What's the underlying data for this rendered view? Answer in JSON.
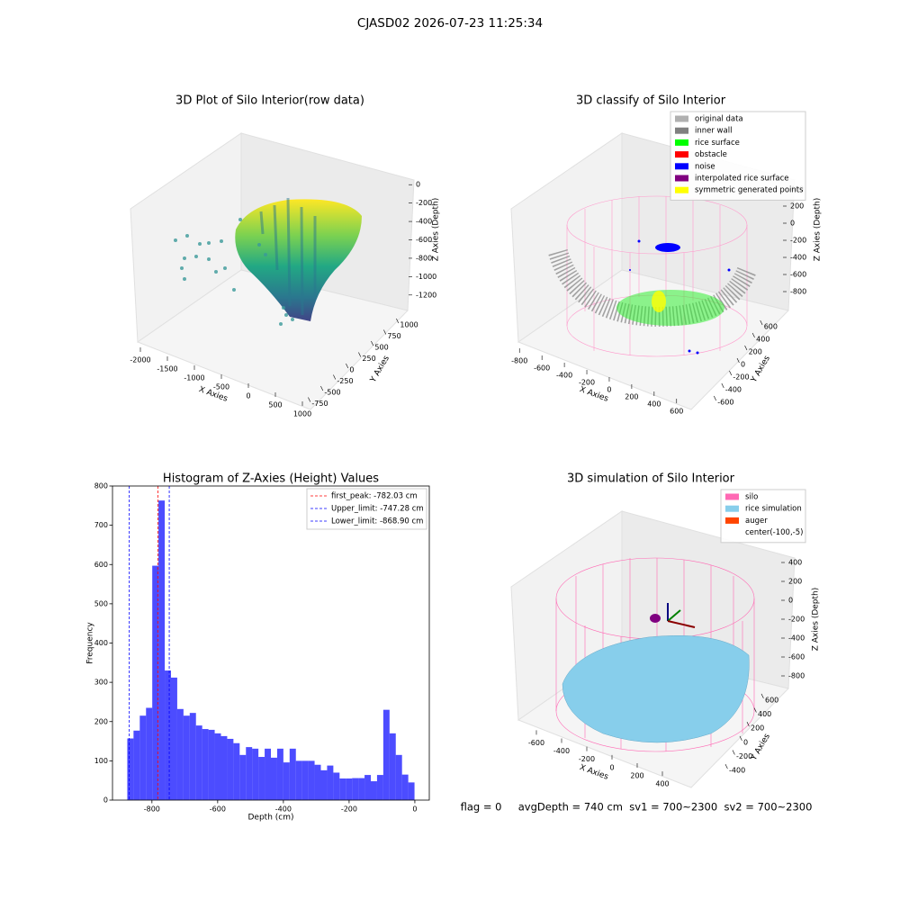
{
  "title": "CJASD02 2026-07-23 11:25:34",
  "footer": "flag = 0     avgDepth = 740 cm  sv1 = 700~2300  sv2 = 700~2300",
  "chart_data": [
    {
      "type": "scatter3d",
      "title": "3D Plot of Silo Interior(row data)",
      "xlabel": "X Axies",
      "ylabel": "Y Axies",
      "zlabel": "Z Axies (Depth)",
      "xlim": [
        -2200,
        1200
      ],
      "xticks": [
        -2000,
        -1500,
        -1000,
        -500,
        0,
        500,
        1000
      ],
      "ylim": [
        -900,
        1100
      ],
      "yticks": [
        -750,
        -500,
        -250,
        0,
        250,
        500,
        750,
        1000
      ],
      "zlim": [
        -1300,
        100
      ],
      "zticks": [
        0,
        -200,
        -400,
        -600,
        -800,
        -1000,
        -1200
      ]
    },
    {
      "type": "scatter3d",
      "title": "3D classify of Silo Interior",
      "xlabel": "X Axies",
      "ylabel": "Y Axies",
      "zlabel": "Z Axies (Depth)",
      "xlim": [
        -850,
        650
      ],
      "xticks": [
        -800,
        -600,
        -400,
        -200,
        0,
        200,
        400,
        600
      ],
      "ylim": [
        -700,
        700
      ],
      "yticks": [
        -600,
        -400,
        -200,
        0,
        200,
        400,
        600
      ],
      "zlim": [
        -900,
        500
      ],
      "zticks": [
        400,
        200,
        0,
        -200,
        -400,
        -600,
        -800
      ],
      "legend": [
        {
          "name": "original data",
          "color": "#b0b0b0"
        },
        {
          "name": "inner wall",
          "color": "#808080"
        },
        {
          "name": "rice surface",
          "color": "#00ff00"
        },
        {
          "name": "obstacle",
          "color": "#ff0000"
        },
        {
          "name": "noise",
          "color": "#0000ff"
        },
        {
          "name": "interpolated rice surface",
          "color": "#800080"
        },
        {
          "name": "symmetric generated points",
          "color": "#ffff00"
        }
      ]
    },
    {
      "type": "histogram",
      "title": "Histogram of Z-Axies (Height) Values",
      "xlabel": "Depth (cm)",
      "ylabel": "Frequency",
      "color": "#0000ff",
      "bins": [
        -875,
        -856,
        -837,
        -818,
        -799,
        -780,
        -761,
        -742,
        -723,
        -704,
        -685,
        -666,
        -647,
        -628,
        -609,
        -590,
        -571,
        -552,
        -533,
        -514,
        -495,
        -476,
        -457,
        -438,
        -419,
        -400,
        -381,
        -362,
        -343,
        -324,
        -305,
        -286,
        -267,
        -248,
        -229,
        -210,
        -191,
        -172,
        -153,
        -134,
        -115,
        -96,
        -77,
        -58,
        -39,
        -20,
        -1
      ],
      "values": [
        157,
        177,
        215,
        235,
        597,
        763,
        330,
        312,
        232,
        215,
        222,
        190,
        181,
        179,
        170,
        163,
        156,
        145,
        115,
        135,
        131,
        110,
        131,
        108,
        131,
        96,
        131,
        100,
        100,
        100,
        90,
        76,
        88,
        70,
        55,
        55,
        56,
        56,
        64,
        48,
        64,
        230,
        170,
        115,
        65,
        45
      ],
      "xlim": [
        -920,
        44
      ],
      "xticks": [
        -800,
        -600,
        -400,
        -200,
        0
      ],
      "ylim": [
        0,
        800
      ],
      "yticks": [
        0,
        100,
        200,
        300,
        400,
        500,
        600,
        700,
        800
      ],
      "vlines": [
        {
          "label": "first_peak: -782.03 cm",
          "value": -782.03,
          "color": "#ff0000"
        },
        {
          "label": "Upper_limit: -747.28 cm",
          "value": -747.28,
          "color": "#0000ff"
        },
        {
          "label": "Lower_limit: -868.90 cm",
          "value": -868.9,
          "color": "#0000ff"
        }
      ]
    },
    {
      "type": "surface3d",
      "title": "3D simulation of Silo Interior",
      "xlabel": "X Axies",
      "ylabel": "Y Axies",
      "zlabel": "Z Axies (Depth)",
      "xlim": [
        -750,
        550
      ],
      "xticks": [
        -600,
        -400,
        -200,
        0,
        200,
        400
      ],
      "ylim": [
        -500,
        700
      ],
      "yticks": [
        -400,
        -200,
        0,
        200,
        400,
        600
      ],
      "zlim": [
        -900,
        500
      ],
      "zticks": [
        400,
        200,
        0,
        -200,
        -400,
        -600,
        -800
      ],
      "legend": [
        {
          "name": "silo",
          "color": "#ff69b4"
        },
        {
          "name": "rice simulation",
          "color": "#87ceeb"
        },
        {
          "name": "auger",
          "color": "#ff4500"
        },
        {
          "name": "center(-100,-5)",
          "color": "#ffffff"
        }
      ]
    }
  ]
}
